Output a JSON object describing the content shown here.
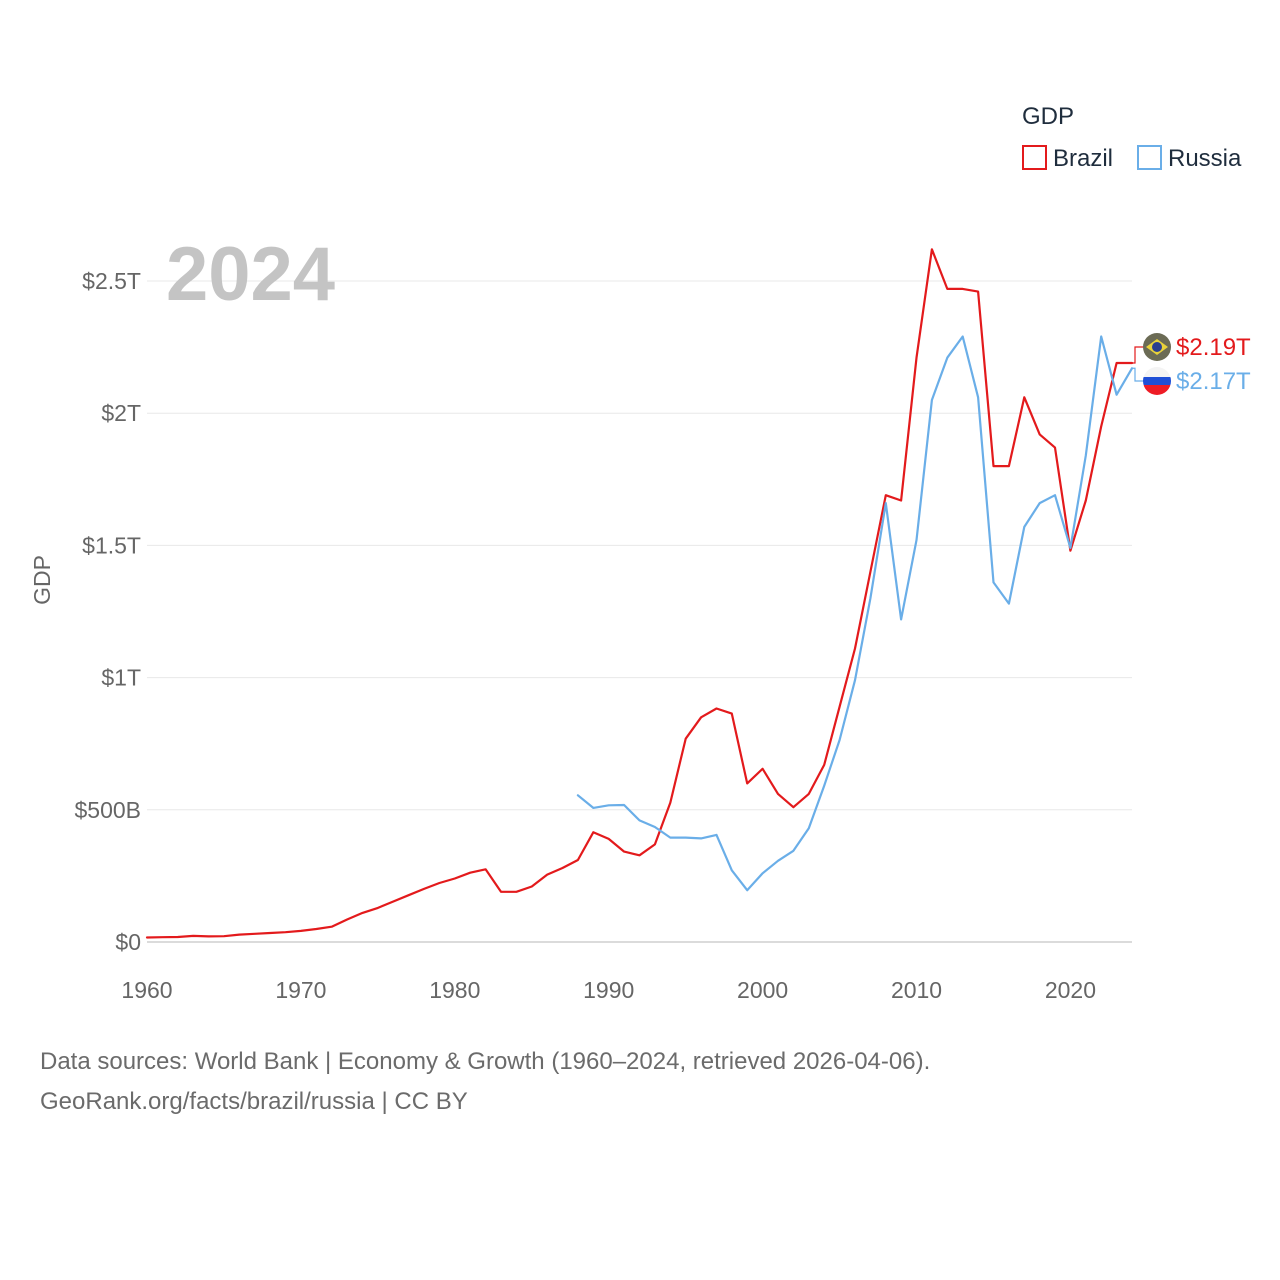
{
  "chart_data": {
    "type": "line",
    "title": "",
    "big_year_label": "2024",
    "xlabel": "",
    "ylabel": "GDP",
    "legend": {
      "title": "GDP",
      "position": "top-right",
      "entries": [
        "Brazil",
        "Russia"
      ]
    },
    "xlim": [
      1960,
      2024
    ],
    "ylim": [
      0,
      2.75
    ],
    "x_ticks": [
      1960,
      1970,
      1980,
      1990,
      2000,
      2010,
      2020
    ],
    "x_tick_labels": [
      "1960",
      "1970",
      "1980",
      "1990",
      "2000",
      "2010",
      "2020"
    ],
    "y_ticks": [
      0,
      0.5,
      1,
      1.5,
      2,
      2.5
    ],
    "y_tick_labels": [
      "$0",
      "$500B",
      "$1T",
      "$1.5T",
      "$2T",
      "$2.5T"
    ],
    "y_units": "trillions USD",
    "grid": true,
    "series": [
      {
        "name": "Brazil",
        "color": "#e31a1c",
        "flag_icon": "brazil-flag-icon",
        "end_label": "$2.19T",
        "x": [
          1960,
          1961,
          1962,
          1963,
          1964,
          1965,
          1966,
          1967,
          1968,
          1969,
          1970,
          1971,
          1972,
          1973,
          1974,
          1975,
          1976,
          1977,
          1978,
          1979,
          1980,
          1981,
          1982,
          1983,
          1984,
          1985,
          1986,
          1987,
          1988,
          1989,
          1990,
          1991,
          1992,
          1993,
          1994,
          1995,
          1996,
          1997,
          1998,
          1999,
          2000,
          2001,
          2002,
          2003,
          2004,
          2005,
          2006,
          2007,
          2008,
          2009,
          2010,
          2011,
          2012,
          2013,
          2014,
          2015,
          2016,
          2017,
          2018,
          2019,
          2020,
          2021,
          2022,
          2023,
          2024
        ],
        "values": [
          0.017,
          0.018,
          0.019,
          0.023,
          0.021,
          0.022,
          0.028,
          0.031,
          0.034,
          0.037,
          0.042,
          0.049,
          0.058,
          0.085,
          0.11,
          0.129,
          0.153,
          0.177,
          0.201,
          0.223,
          0.24,
          0.262,
          0.275,
          0.19,
          0.19,
          0.21,
          0.255,
          0.28,
          0.31,
          0.415,
          0.39,
          0.342,
          0.328,
          0.369,
          0.527,
          0.769,
          0.85,
          0.883,
          0.864,
          0.6,
          0.655,
          0.56,
          0.51,
          0.56,
          0.67,
          0.89,
          1.11,
          1.4,
          1.69,
          1.67,
          2.21,
          2.62,
          2.47,
          2.47,
          2.46,
          1.8,
          1.8,
          2.06,
          1.92,
          1.87,
          1.48,
          1.67,
          1.95,
          2.19,
          2.19
        ]
      },
      {
        "name": "Russia",
        "color": "#6aaee8",
        "flag_icon": "russia-flag-icon",
        "end_label": "$2.17T",
        "x": [
          1988,
          1989,
          1990,
          1991,
          1992,
          1993,
          1994,
          1995,
          1996,
          1997,
          1998,
          1999,
          2000,
          2001,
          2002,
          2003,
          2004,
          2005,
          2006,
          2007,
          2008,
          2009,
          2010,
          2011,
          2012,
          2013,
          2014,
          2015,
          2016,
          2017,
          2018,
          2019,
          2020,
          2021,
          2022,
          2023,
          2024
        ],
        "values": [
          0.555,
          0.507,
          0.517,
          0.518,
          0.46,
          0.435,
          0.395,
          0.395,
          0.392,
          0.405,
          0.271,
          0.196,
          0.26,
          0.307,
          0.345,
          0.43,
          0.591,
          0.764,
          0.99,
          1.3,
          1.66,
          1.22,
          1.52,
          2.05,
          2.21,
          2.29,
          2.06,
          1.36,
          1.28,
          1.57,
          1.66,
          1.69,
          1.49,
          1.84,
          2.29,
          2.07,
          2.17
        ]
      }
    ]
  },
  "footer": {
    "line1": "Data sources: World Bank | Economy & Growth (1960–2024, retrieved 2026-04-06).",
    "line2": "GeoRank.org/facts/brazil/russia | CC BY"
  }
}
